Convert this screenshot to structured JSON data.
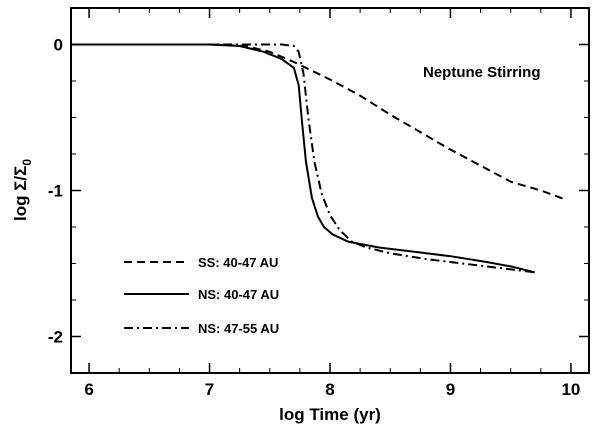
{
  "chart_data": {
    "type": "line",
    "title": "",
    "xlabel": "log Time (yr)",
    "ylabel": "log Σ/Σ",
    "ylabel_subscript": "0",
    "xlim": [
      5.85,
      10.15
    ],
    "ylim": [
      -2.25,
      0.25
    ],
    "xticks": [
      6,
      7,
      8,
      9,
      10
    ],
    "xtick_labels": [
      "6",
      "7",
      "8",
      "9",
      "10"
    ],
    "yticks": [
      0,
      -1,
      -2
    ],
    "ytick_labels": [
      "0",
      "-1",
      "-2"
    ],
    "annotation": "Neptune Stirring",
    "legend_position": "lower-left",
    "grid": false,
    "series": [
      {
        "name": "SS: 40-47 AU",
        "line_style": "dashed",
        "points": [
          [
            5.85,
            0
          ],
          [
            6.0,
            0
          ],
          [
            6.5,
            0
          ],
          [
            7.0,
            0
          ],
          [
            7.3,
            -0.01
          ],
          [
            7.5,
            -0.05
          ],
          [
            7.7,
            -0.12
          ],
          [
            7.9,
            -0.2
          ],
          [
            8.0,
            -0.24
          ],
          [
            8.25,
            -0.35
          ],
          [
            8.5,
            -0.48
          ],
          [
            8.75,
            -0.6
          ],
          [
            9.0,
            -0.72
          ],
          [
            9.25,
            -0.83
          ],
          [
            9.5,
            -0.94
          ],
          [
            9.75,
            -1.0
          ],
          [
            9.95,
            -1.06
          ]
        ]
      },
      {
        "name": "NS: 40-47 AU",
        "line_style": "solid",
        "points": [
          [
            5.85,
            0
          ],
          [
            6.5,
            0
          ],
          [
            7.0,
            0
          ],
          [
            7.25,
            -0.01
          ],
          [
            7.45,
            -0.05
          ],
          [
            7.6,
            -0.1
          ],
          [
            7.7,
            -0.16
          ],
          [
            7.74,
            -0.28
          ],
          [
            7.77,
            -0.55
          ],
          [
            7.8,
            -0.8
          ],
          [
            7.85,
            -1.05
          ],
          [
            7.9,
            -1.18
          ],
          [
            7.95,
            -1.25
          ],
          [
            8.02,
            -1.3
          ],
          [
            8.15,
            -1.35
          ],
          [
            8.4,
            -1.39
          ],
          [
            8.7,
            -1.42
          ],
          [
            9.0,
            -1.45
          ],
          [
            9.3,
            -1.49
          ],
          [
            9.5,
            -1.52
          ],
          [
            9.7,
            -1.56
          ]
        ]
      },
      {
        "name": "NS: 47-55 AU",
        "line_style": "dashdot",
        "points": [
          [
            5.85,
            0
          ],
          [
            6.5,
            0
          ],
          [
            7.0,
            0
          ],
          [
            7.6,
            0
          ],
          [
            7.7,
            -0.01
          ],
          [
            7.74,
            -0.05
          ],
          [
            7.78,
            -0.2
          ],
          [
            7.82,
            -0.5
          ],
          [
            7.87,
            -0.8
          ],
          [
            7.93,
            -1.02
          ],
          [
            8.0,
            -1.17
          ],
          [
            8.08,
            -1.27
          ],
          [
            8.18,
            -1.35
          ],
          [
            8.3,
            -1.39
          ],
          [
            8.5,
            -1.43
          ],
          [
            8.8,
            -1.47
          ],
          [
            9.1,
            -1.5
          ],
          [
            9.4,
            -1.53
          ],
          [
            9.7,
            -1.56
          ]
        ]
      }
    ]
  }
}
